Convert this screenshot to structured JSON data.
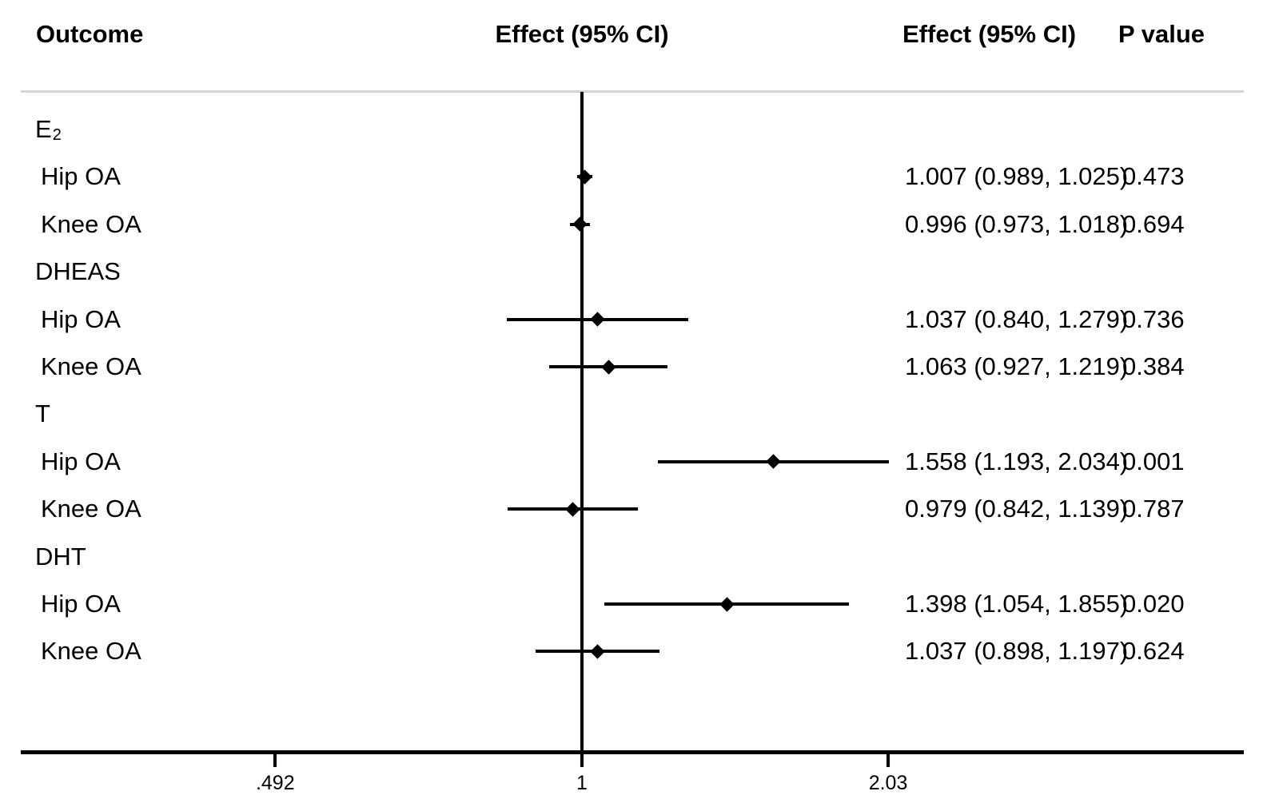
{
  "header": {
    "outcome_label": "Outcome",
    "effect_plot_label": "Effect (95% CI)",
    "effect_text_label": "Effect (95% CI)",
    "p_value_label": "P value"
  },
  "chart_data": {
    "type": "forest",
    "x_scale": "log",
    "reference_value": 1,
    "grid": "off",
    "axis_range": [
      0.36,
      2.8
    ],
    "axis_ticks": [
      {
        "value": 0.492,
        "label": ".492"
      },
      {
        "value": 1,
        "label": "1"
      },
      {
        "value": 2.03,
        "label": "2.03"
      }
    ],
    "groups": [
      {
        "label": "E",
        "label_sub": "2",
        "rows": [
          {
            "label": "Hip OA",
            "effect": 1.007,
            "ci_low": 0.989,
            "ci_high": 1.025,
            "effect_text": "1.007 (0.989, 1.025)",
            "p_value": "0.473"
          },
          {
            "label": "Knee OA",
            "effect": 0.996,
            "ci_low": 0.973,
            "ci_high": 1.018,
            "effect_text": "0.996 (0.973, 1.018)",
            "p_value": "0.694"
          }
        ]
      },
      {
        "label": "DHEAS",
        "rows": [
          {
            "label": "Hip OA",
            "effect": 1.037,
            "ci_low": 0.84,
            "ci_high": 1.279,
            "effect_text": "1.037 (0.840, 1.279)",
            "p_value": "0.736"
          },
          {
            "label": "Knee OA",
            "effect": 1.063,
            "ci_low": 0.927,
            "ci_high": 1.219,
            "effect_text": "1.063 (0.927, 1.219)",
            "p_value": "0.384"
          }
        ]
      },
      {
        "label": "T",
        "rows": [
          {
            "label": "Hip OA",
            "effect": 1.558,
            "ci_low": 1.193,
            "ci_high": 2.034,
            "effect_text": "1.558 (1.193, 2.034)",
            "p_value": "0.001"
          },
          {
            "label": "Knee OA",
            "effect": 0.979,
            "ci_low": 0.842,
            "ci_high": 1.139,
            "effect_text": "0.979 (0.842, 1.139)",
            "p_value": "0.787"
          }
        ]
      },
      {
        "label": "DHT",
        "rows": [
          {
            "label": "Hip OA",
            "effect": 1.398,
            "ci_low": 1.054,
            "ci_high": 1.855,
            "effect_text": "1.398 (1.054, 1.855)",
            "p_value": "0.020"
          },
          {
            "label": "Knee OA",
            "effect": 1.037,
            "ci_low": 0.898,
            "ci_high": 1.197,
            "effect_text": "1.037 (0.898, 1.197)",
            "p_value": "0.624"
          }
        ]
      }
    ]
  }
}
